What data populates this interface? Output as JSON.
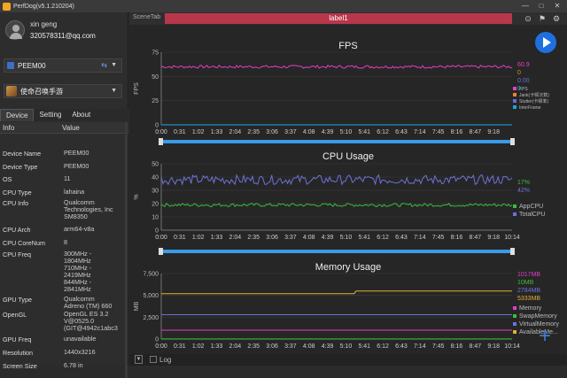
{
  "window": {
    "title": "PerfDog(v5.1.210204)"
  },
  "user": {
    "name": "xin geng",
    "email": "320578311@qq.com"
  },
  "device": {
    "selected": "PEEM00"
  },
  "app": {
    "selected": "使命召唤手游"
  },
  "tabs": [
    "Device",
    "Setting",
    "About"
  ],
  "table": {
    "headers": [
      "Info",
      "Value"
    ],
    "rows": [
      {
        "k": "Device Name",
        "v": "PEEM00"
      },
      {
        "k": "Device Type",
        "v": "PEEM00"
      },
      {
        "k": "OS",
        "v": "11"
      },
      {
        "k": "CPU Type",
        "v": "lahaina"
      },
      {
        "k": "CPU Info",
        "v": "Qualcomm\nTechnologies, Inc\nSM8350"
      },
      {
        "k": "CPU Arch",
        "v": "arm64-v8a"
      },
      {
        "k": "CPU CoreNum",
        "v": "8"
      },
      {
        "k": "CPU Freq",
        "v": "300MHz -\n1804MHz\n710MHz -\n2419MHz\n844MHz -\n2841MHz"
      },
      {
        "k": "GPU Type",
        "v": "Qualcomm\nAdreno (TM) 660"
      },
      {
        "k": "OpenGL",
        "v": "OpenGL ES 3.2\nV@0525.0\n(GIT@4942c1abc3"
      },
      {
        "k": "GPU Freq",
        "v": "unavailable"
      },
      {
        "k": "Resolution",
        "v": "1440x3216"
      },
      {
        "k": "Screen Size",
        "v": "6.78 in"
      }
    ]
  },
  "scene": {
    "tab_label": "SceneTab",
    "bar_label": "label1"
  },
  "bottom": {
    "log_label": "Log"
  },
  "colors": {
    "accent": "#1f6fe0",
    "scene_bar": "#b8374a",
    "timeline": "#3a9be8"
  },
  "chart_data": [
    {
      "type": "line",
      "title": "FPS",
      "ylabel": "FPS",
      "ylim": [
        0,
        75
      ],
      "yticks": [
        0,
        25,
        50,
        75
      ],
      "xticks": [
        "0:00",
        "0:31",
        "1:02",
        "1:33",
        "2:04",
        "2:35",
        "3:06",
        "3:37",
        "4:08",
        "4:39",
        "5:10",
        "5:41",
        "6:12",
        "6:43",
        "7:14",
        "7:45",
        "8:16",
        "8:47",
        "9:18"
      ],
      "current_values": [
        "60.9",
        "0",
        "0.00",
        "0"
      ],
      "series": [
        {
          "name": "FPS",
          "color": "#e33fc2",
          "baseline": 60
        },
        {
          "name": "Jank(卡顿次数)",
          "color": "#e8842a",
          "baseline": 0
        },
        {
          "name": "Stutter(卡顿率)",
          "color": "#6b6be0",
          "baseline": 0
        },
        {
          "name": "InterFrame",
          "color": "#19a6e0",
          "baseline": 0
        }
      ]
    },
    {
      "type": "line",
      "title": "CPU Usage",
      "ylabel": "%",
      "ylim": [
        0,
        50
      ],
      "yticks": [
        0,
        10,
        20,
        30,
        40,
        50
      ],
      "xticks": [
        "0:00",
        "0:31",
        "1:02",
        "1:33",
        "2:04",
        "2:35",
        "3:06",
        "3:37",
        "4:08",
        "4:39",
        "5:10",
        "5:41",
        "6:12",
        "6:43",
        "7:14",
        "7:45",
        "8:16",
        "8:47",
        "9:18",
        "10:14"
      ],
      "current_values": [
        "17%",
        "42%"
      ],
      "series": [
        {
          "name": "AppCPU",
          "color": "#3bbd3b",
          "baseline": 19
        },
        {
          "name": "TotalCPU",
          "color": "#6c73d8",
          "baseline": 38
        }
      ]
    },
    {
      "type": "line",
      "title": "Memory Usage",
      "ylabel": "MB",
      "ylim": [
        0,
        7500
      ],
      "yticks": [
        0,
        2500,
        5000,
        7500
      ],
      "xticks": [
        "0:00",
        "0:31",
        "1:02",
        "1:33",
        "2:04",
        "2:35",
        "3:06",
        "3:37",
        "4:08",
        "4:39",
        "5:10",
        "5:41",
        "6:12",
        "6:43",
        "7:14",
        "7:45",
        "8:16",
        "8:47",
        "9:18",
        "10:14"
      ],
      "current_values": [
        "1017MB",
        "10MB",
        "2784MB",
        "5333MB"
      ],
      "series": [
        {
          "name": "Memory",
          "color": "#e33fc2",
          "baseline": 1017
        },
        {
          "name": "SwapMemory",
          "color": "#3bbd3b",
          "baseline": 10
        },
        {
          "name": "VirtualMemory",
          "color": "#6c73d8",
          "baseline": 2784
        },
        {
          "name": "AvailableMe...",
          "color": "#e0b030",
          "baseline": 5200
        }
      ]
    }
  ]
}
